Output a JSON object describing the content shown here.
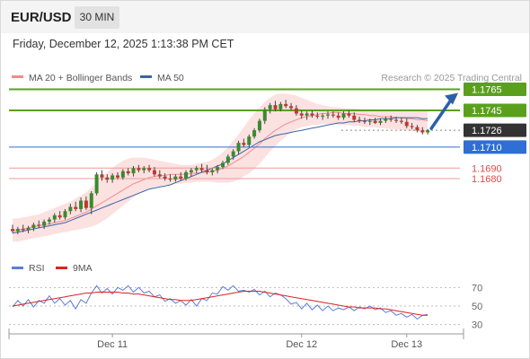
{
  "header": {
    "symbol": "EUR/USD",
    "timeframe": "30 MIN",
    "datetime": "Friday, December 12, 2025 1:13:38 PM CET"
  },
  "chart_data": {
    "type": "candlestick",
    "legend": [
      {
        "name": "MA 20 + Bollinger Bands",
        "color": "#f28b8b"
      },
      {
        "name": "MA 50",
        "color": "#3c65a8"
      }
    ],
    "credit": "Research © 2025 Trading Central",
    "price_levels": [
      {
        "label": "1.1765",
        "value": 1.1765,
        "kind": "target",
        "color": "#5aa01e"
      },
      {
        "label": "1.1745",
        "value": 1.1745,
        "kind": "resistance",
        "color": "#5aa01e"
      },
      {
        "label": "1.1726",
        "value": 1.1726,
        "kind": "last",
        "color": "#333333"
      },
      {
        "label": "1.1710",
        "value": 1.171,
        "kind": "pivot",
        "color": "#2f6ed2"
      },
      {
        "label": "1.1690",
        "value": 1.169,
        "kind": "support",
        "color": "#e04a4a"
      },
      {
        "label": "1.1680",
        "value": 1.168,
        "kind": "support",
        "color": "#e04a4a"
      }
    ],
    "candles": [
      [
        1.1632,
        1.1636,
        1.1628,
        1.163
      ],
      [
        1.163,
        1.1634,
        1.1627,
        1.1632
      ],
      [
        1.1632,
        1.1636,
        1.1629,
        1.1631
      ],
      [
        1.1631,
        1.1635,
        1.1628,
        1.1633
      ],
      [
        1.1633,
        1.1638,
        1.163,
        1.1636
      ],
      [
        1.1636,
        1.164,
        1.1633,
        1.1635
      ],
      [
        1.1635,
        1.1641,
        1.1632,
        1.1639
      ],
      [
        1.1639,
        1.1643,
        1.1636,
        1.1641
      ],
      [
        1.1641,
        1.1647,
        1.1638,
        1.1645
      ],
      [
        1.1645,
        1.1649,
        1.1641,
        1.1643
      ],
      [
        1.1643,
        1.1651,
        1.1641,
        1.1649
      ],
      [
        1.1649,
        1.1656,
        1.1646,
        1.1653
      ],
      [
        1.1653,
        1.1658,
        1.1649,
        1.1651
      ],
      [
        1.1651,
        1.1662,
        1.1648,
        1.1659
      ],
      [
        1.1659,
        1.1663,
        1.165,
        1.1652
      ],
      [
        1.1652,
        1.1668,
        1.1646,
        1.1666
      ],
      [
        1.1666,
        1.1686,
        1.1664,
        1.1684
      ],
      [
        1.1684,
        1.1688,
        1.1678,
        1.1681
      ],
      [
        1.1681,
        1.1684,
        1.1676,
        1.1679
      ],
      [
        1.1679,
        1.1685,
        1.1676,
        1.1683
      ],
      [
        1.1683,
        1.1686,
        1.1679,
        1.1681
      ],
      [
        1.1681,
        1.1689,
        1.1679,
        1.1687
      ],
      [
        1.1687,
        1.169,
        1.1683,
        1.1685
      ],
      [
        1.1685,
        1.1692,
        1.1682,
        1.169
      ],
      [
        1.169,
        1.1693,
        1.1686,
        1.1688
      ],
      [
        1.1688,
        1.1692,
        1.1685,
        1.169
      ],
      [
        1.169,
        1.1693,
        1.1686,
        1.1688
      ],
      [
        1.1688,
        1.1691,
        1.1682,
        1.1684
      ],
      [
        1.1684,
        1.1688,
        1.168,
        1.1682
      ],
      [
        1.1682,
        1.1685,
        1.1678,
        1.168
      ],
      [
        1.168,
        1.1684,
        1.1677,
        1.1679
      ],
      [
        1.1679,
        1.1684,
        1.1677,
        1.1682
      ],
      [
        1.1682,
        1.1686,
        1.1678,
        1.168
      ],
      [
        1.168,
        1.1688,
        1.1678,
        1.1686
      ],
      [
        1.1686,
        1.169,
        1.1682,
        1.1688
      ],
      [
        1.1688,
        1.1692,
        1.1685,
        1.169
      ],
      [
        1.169,
        1.1694,
        1.1686,
        1.1688
      ],
      [
        1.1688,
        1.1693,
        1.1684,
        1.1686
      ],
      [
        1.1686,
        1.169,
        1.1683,
        1.1688
      ],
      [
        1.1688,
        1.1693,
        1.1685,
        1.1691
      ],
      [
        1.1691,
        1.1697,
        1.1689,
        1.1695
      ],
      [
        1.1695,
        1.1703,
        1.1693,
        1.1701
      ],
      [
        1.1701,
        1.1708,
        1.1698,
        1.1706
      ],
      [
        1.1706,
        1.1716,
        1.1703,
        1.1714
      ],
      [
        1.1714,
        1.1718,
        1.171,
        1.1712
      ],
      [
        1.1712,
        1.1722,
        1.171,
        1.172
      ],
      [
        1.172,
        1.1728,
        1.1718,
        1.1726
      ],
      [
        1.1726,
        1.1737,
        1.1724,
        1.1735
      ],
      [
        1.1735,
        1.1748,
        1.1732,
        1.1746
      ],
      [
        1.1746,
        1.1752,
        1.1742,
        1.175
      ],
      [
        1.175,
        1.1754,
        1.1744,
        1.1746
      ],
      [
        1.1746,
        1.1753,
        1.1744,
        1.1751
      ],
      [
        1.1751,
        1.1755,
        1.1747,
        1.1749
      ],
      [
        1.1749,
        1.1752,
        1.1745,
        1.1747
      ],
      [
        1.1747,
        1.175,
        1.174,
        1.1742
      ],
      [
        1.1742,
        1.1745,
        1.1737,
        1.174
      ],
      [
        1.174,
        1.1744,
        1.1736,
        1.1742
      ],
      [
        1.1742,
        1.1745,
        1.1738,
        1.174
      ],
      [
        1.174,
        1.1743,
        1.1737,
        1.1739
      ],
      [
        1.1739,
        1.1742,
        1.1736,
        1.174
      ],
      [
        1.174,
        1.1744,
        1.1737,
        1.1741
      ],
      [
        1.1741,
        1.1744,
        1.1738,
        1.174
      ],
      [
        1.174,
        1.1743,
        1.1736,
        1.1738
      ],
      [
        1.1738,
        1.1744,
        1.1736,
        1.1742
      ],
      [
        1.1742,
        1.1745,
        1.1738,
        1.174
      ],
      [
        1.174,
        1.1743,
        1.1734,
        1.1736
      ],
      [
        1.1736,
        1.1739,
        1.1733,
        1.1735
      ],
      [
        1.1735,
        1.1738,
        1.1732,
        1.1734
      ],
      [
        1.1734,
        1.1737,
        1.1731,
        1.1735
      ],
      [
        1.1735,
        1.1738,
        1.1732,
        1.1733
      ],
      [
        1.1733,
        1.1737,
        1.1731,
        1.1735
      ],
      [
        1.1735,
        1.1739,
        1.1733,
        1.1737
      ],
      [
        1.1737,
        1.174,
        1.1734,
        1.1736
      ],
      [
        1.1736,
        1.1739,
        1.1733,
        1.1735
      ],
      [
        1.1735,
        1.1738,
        1.1732,
        1.1734
      ],
      [
        1.1734,
        1.1737,
        1.1728,
        1.173
      ],
      [
        1.173,
        1.1733,
        1.1727,
        1.1729
      ],
      [
        1.1729,
        1.1731,
        1.1724,
        1.1726
      ],
      [
        1.1726,
        1.1729,
        1.1722,
        1.1724
      ],
      [
        1.1724,
        1.1727,
        1.1722,
        1.1726
      ]
    ],
    "ma50": [
      1.1628,
      1.1629,
      1.163,
      1.1631,
      1.1632,
      1.1633,
      1.1634,
      1.1635,
      1.1636,
      1.1637,
      1.1638,
      1.164,
      1.1642,
      1.1644,
      1.1646,
      1.1648,
      1.165,
      1.1652,
      1.1654,
      1.1656,
      1.1658,
      1.166,
      1.1662,
      1.1664,
      1.1666,
      1.1668,
      1.167,
      1.1671,
      1.1672,
      1.1673,
      1.1674,
      1.1676,
      1.1678,
      1.168,
      1.1682,
      1.1684,
      1.1686,
      1.1688,
      1.169,
      1.1692,
      1.1694,
      1.1697,
      1.17,
      1.1703,
      1.1706,
      1.1709,
      1.1712,
      1.1715,
      1.1717,
      1.1719,
      1.1721,
      1.1722,
      1.1723,
      1.1724,
      1.1725,
      1.1726,
      1.1727,
      1.1728,
      1.1729,
      1.173,
      1.1731,
      1.1732,
      1.1733,
      1.1733,
      1.1734,
      1.1734,
      1.1735,
      1.1735,
      1.1736,
      1.1736,
      1.1737,
      1.1737,
      1.1737,
      1.1738,
      1.1738,
      1.1738,
      1.1738,
      1.1738,
      1.1737,
      1.1737
    ],
    "ma20": [
      1.163,
      1.1631,
      1.1632,
      1.1633,
      1.1634,
      1.1635,
      1.1636,
      1.1637,
      1.1638,
      1.1639,
      1.164,
      1.1642,
      1.1644,
      1.1646,
      1.1648,
      1.1651,
      1.1654,
      1.1657,
      1.166,
      1.1663,
      1.1666,
      1.1669,
      1.1672,
      1.1675,
      1.1677,
      1.1679,
      1.1681,
      1.1682,
      1.1683,
      1.1683,
      1.1684,
      1.1684,
      1.1684,
      1.1684,
      1.1685,
      1.1685,
      1.1686,
      1.1686,
      1.1687,
      1.1688,
      1.169,
      1.1692,
      1.1695,
      1.1698,
      1.1701,
      1.1705,
      1.1709,
      1.1713,
      1.1718,
      1.1722,
      1.1726,
      1.1729,
      1.1732,
      1.1734,
      1.1736,
      1.1738,
      1.1739,
      1.174,
      1.1741,
      1.1742,
      1.1742,
      1.1743,
      1.1743,
      1.1742,
      1.1742,
      1.1742,
      1.1741,
      1.1741,
      1.174,
      1.174,
      1.1739,
      1.1739,
      1.1739,
      1.1738,
      1.1738,
      1.1737,
      1.1737,
      1.1736,
      1.1736,
      1.1735
    ],
    "bb_upper": [
      1.1642,
      1.1642,
      1.1643,
      1.1644,
      1.1645,
      1.1646,
      1.1648,
      1.165,
      1.1652,
      1.1654,
      1.1656,
      1.1658,
      1.1661,
      1.1664,
      1.1667,
      1.1671,
      1.1676,
      1.1681,
      1.1686,
      1.169,
      1.1694,
      1.1697,
      1.1699,
      1.17,
      1.17,
      1.17,
      1.1699,
      1.1698,
      1.1697,
      1.1696,
      1.1695,
      1.1694,
      1.1693,
      1.1693,
      1.1693,
      1.1694,
      1.1695,
      1.1696,
      1.1698,
      1.1701,
      1.1705,
      1.171,
      1.1716,
      1.1722,
      1.1729,
      1.1736,
      1.1742,
      1.1748,
      1.1753,
      1.1757,
      1.176,
      1.1761,
      1.1761,
      1.176,
      1.1759,
      1.1757,
      1.1755,
      1.1753,
      1.1751,
      1.175,
      1.1749,
      1.1748,
      1.1748,
      1.1747,
      1.1747,
      1.1747,
      1.1746,
      1.1746,
      1.1746,
      1.1745,
      1.1745,
      1.1745,
      1.1745,
      1.1745,
      1.1745,
      1.1745,
      1.1745,
      1.1745,
      1.1745,
      1.1744
    ],
    "bb_lower": [
      1.162,
      1.162,
      1.1621,
      1.1622,
      1.1623,
      1.1624,
      1.1625,
      1.1626,
      1.1627,
      1.1628,
      1.1629,
      1.163,
      1.1631,
      1.1632,
      1.1633,
      1.1634,
      1.1636,
      1.1639,
      1.1642,
      1.1646,
      1.165,
      1.1654,
      1.1658,
      1.1662,
      1.1665,
      1.1668,
      1.167,
      1.1672,
      1.1673,
      1.1674,
      1.1674,
      1.1675,
      1.1675,
      1.1676,
      1.1676,
      1.1677,
      1.1677,
      1.1677,
      1.1677,
      1.1676,
      1.1676,
      1.1676,
      1.1677,
      1.1679,
      1.1682,
      1.1685,
      1.1689,
      1.1694,
      1.17,
      1.1706,
      1.1711,
      1.1716,
      1.172,
      1.1724,
      1.1727,
      1.1729,
      1.173,
      1.1731,
      1.1731,
      1.1732,
      1.1732,
      1.1732,
      1.1731,
      1.1731,
      1.1731,
      1.173,
      1.173,
      1.1729,
      1.1729,
      1.1729,
      1.1728,
      1.1728,
      1.1727,
      1.1727,
      1.1726,
      1.1726,
      1.1725,
      1.1725,
      1.1724,
      1.1724
    ],
    "price_range": [
      1.1615,
      1.178
    ],
    "rsi": {
      "legend": [
        {
          "name": "RSI",
          "color": "#5b7fd6"
        },
        {
          "name": "9MA",
          "color": "#e02020"
        }
      ],
      "levels": [
        "70",
        "50",
        "30"
      ],
      "ylim": [
        20,
        80
      ],
      "rsi_values": [
        49,
        56,
        50,
        57,
        49,
        56,
        53,
        61,
        53,
        58,
        51,
        56,
        47,
        57,
        53,
        64,
        72,
        64,
        69,
        63,
        70,
        67,
        72,
        65,
        70,
        64,
        66,
        60,
        62,
        55,
        58,
        53,
        56,
        51,
        57,
        50,
        58,
        56,
        64,
        63,
        71,
        67,
        72,
        66,
        67,
        65,
        68,
        62,
        66,
        60,
        64,
        62,
        58,
        52,
        54,
        47,
        53,
        46,
        51,
        45,
        50,
        45,
        48,
        46,
        49,
        45,
        49,
        47,
        50,
        46,
        48,
        43,
        45,
        40,
        42,
        38,
        41,
        36,
        40,
        41
      ],
      "ma_values": [
        50,
        51,
        52,
        53,
        54,
        55,
        56,
        57,
        58,
        59,
        60,
        61,
        62,
        63,
        64,
        64,
        65,
        65,
        65,
        65,
        65,
        64,
        64,
        63,
        63,
        62,
        61,
        60,
        59,
        58,
        57,
        57,
        56,
        56,
        56,
        57,
        58,
        59,
        60,
        61,
        62,
        63,
        64,
        65,
        66,
        66,
        66,
        66,
        65,
        64,
        63,
        62,
        61,
        60,
        59,
        58,
        57,
        56,
        55,
        54,
        53,
        52,
        51,
        50,
        49,
        49,
        48,
        48,
        48,
        48,
        47,
        47,
        46,
        45,
        44,
        43,
        42,
        41,
        40,
        40
      ]
    },
    "x_labels": [
      {
        "label": "Dec 11",
        "index": 19
      },
      {
        "label": "Dec 12",
        "index": 55
      },
      {
        "label": "Dec 13",
        "index": 75
      }
    ]
  }
}
